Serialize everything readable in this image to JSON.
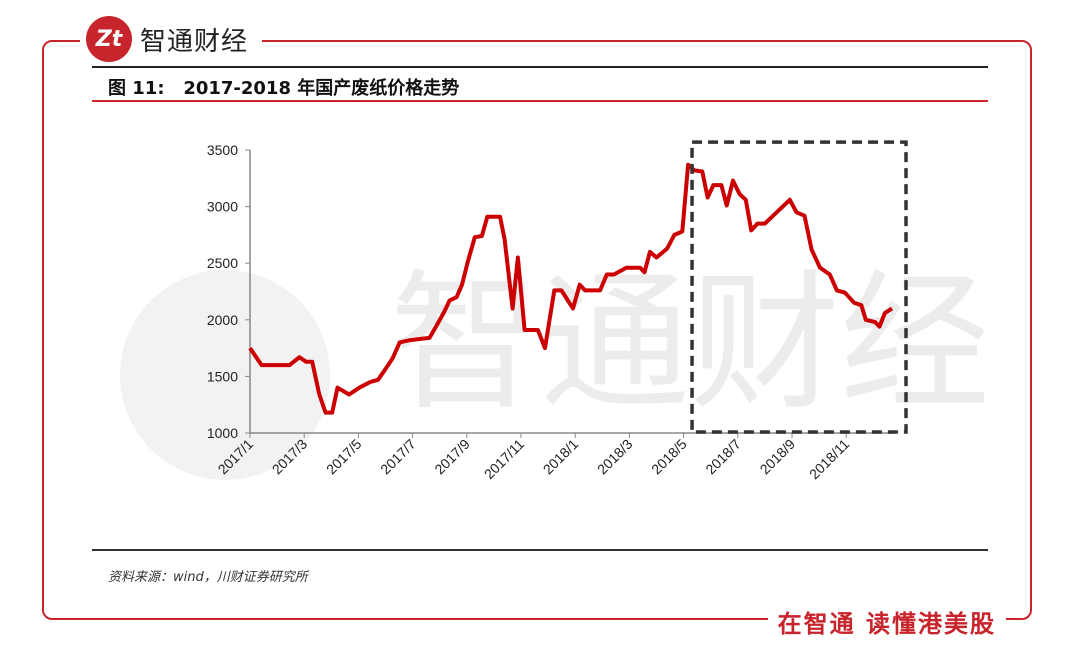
{
  "brand": {
    "logo_mark": "Zt",
    "name": "智通财经",
    "footer_slogan": "在智通  读懂港美股",
    "watermark": "智通财经",
    "accent": "#c8242b"
  },
  "figure": {
    "title": "图 11:   2017-2018 年国产废纸价格走势",
    "source": "资料来源：wind，川财证券研究所"
  },
  "chart_data": {
    "type": "line",
    "title": "",
    "xlabel": "",
    "ylabel": "",
    "ylim": [
      1000,
      3500
    ],
    "yticks": [
      "1000",
      "1500",
      "2000",
      "2500",
      "3000",
      "3500"
    ],
    "xticks": [
      "2017/1",
      "2017/3",
      "2017/5",
      "2017/7",
      "2017/9",
      "2017/11",
      "2018/1",
      "2018/3",
      "2018/5",
      "2018/7",
      "2018/9",
      "2018/11"
    ],
    "grid": false,
    "line_color": "#cc0000",
    "series": [
      {
        "x": [
          "2017-01-01",
          "2017-01-14",
          "2017-02-15",
          "2017-02-26",
          "2017-03-03",
          "2017-03-10",
          "2017-03-18",
          "2017-03-25",
          "2017-04-02",
          "2017-04-08",
          "2017-04-21",
          "2017-05-02",
          "2017-05-14",
          "2017-05-23",
          "2017-05-31",
          "2017-06-09",
          "2017-06-17",
          "2017-06-28",
          "2017-07-20",
          "2017-07-28",
          "2017-08-06",
          "2017-08-12",
          "2017-08-20",
          "2017-08-26",
          "2017-09-02",
          "2017-09-10",
          "2017-09-18",
          "2017-09-24",
          "2017-10-08",
          "2017-10-13",
          "2017-10-22",
          "2017-10-28",
          "2017-11-05",
          "2017-11-20",
          "2017-11-28",
          "2017-12-08",
          "2017-12-16",
          "2017-12-29",
          "2018-01-06",
          "2018-01-12",
          "2018-01-29",
          "2018-02-06",
          "2018-02-14",
          "2018-02-28",
          "2018-03-13",
          "2018-03-18",
          "2018-03-24",
          "2018-04-01",
          "2018-04-13",
          "2018-04-21",
          "2018-04-30",
          "2018-05-06",
          "2018-05-13",
          "2018-05-22",
          "2018-05-28",
          "2018-06-04",
          "2018-06-13",
          "2018-06-19",
          "2018-06-26",
          "2018-07-03",
          "2018-07-10",
          "2018-07-16",
          "2018-07-23",
          "2018-08-01",
          "2018-08-29",
          "2018-09-06",
          "2018-09-15",
          "2018-09-23",
          "2018-10-02",
          "2018-10-13",
          "2018-10-21",
          "2018-10-30",
          "2018-11-10",
          "2018-11-18",
          "2018-11-23",
          "2018-12-03",
          "2018-12-08",
          "2018-12-14",
          "2018-12-22"
        ],
        "values": [
          1750,
          1600,
          1600,
          1670,
          1630,
          1630,
          1340,
          1180,
          1180,
          1400,
          1340,
          1400,
          1450,
          1470,
          1560,
          1660,
          1800,
          1820,
          1840,
          1950,
          2070,
          2170,
          2200,
          2310,
          2510,
          2730,
          2740,
          2910,
          2910,
          2710,
          2100,
          2550,
          1910,
          1910,
          1750,
          2260,
          2260,
          2100,
          2310,
          2260,
          2260,
          2400,
          2400,
          2460,
          2460,
          2420,
          2600,
          2550,
          2630,
          2750,
          2780,
          3370,
          3320,
          3310,
          3080,
          3190,
          3190,
          3010,
          3230,
          3110,
          3060,
          2790,
          2850,
          2850,
          3060,
          2950,
          2920,
          2620,
          2460,
          2400,
          2260,
          2240,
          2150,
          2130,
          2000,
          1980,
          1940,
          2060,
          2100
        ]
      }
    ],
    "annotations": [
      {
        "type": "dashed-box",
        "x_range": [
          "2018-05-06",
          "2018-12-31"
        ],
        "y_range": [
          1000,
          3570
        ],
        "color": "#333333"
      }
    ]
  }
}
